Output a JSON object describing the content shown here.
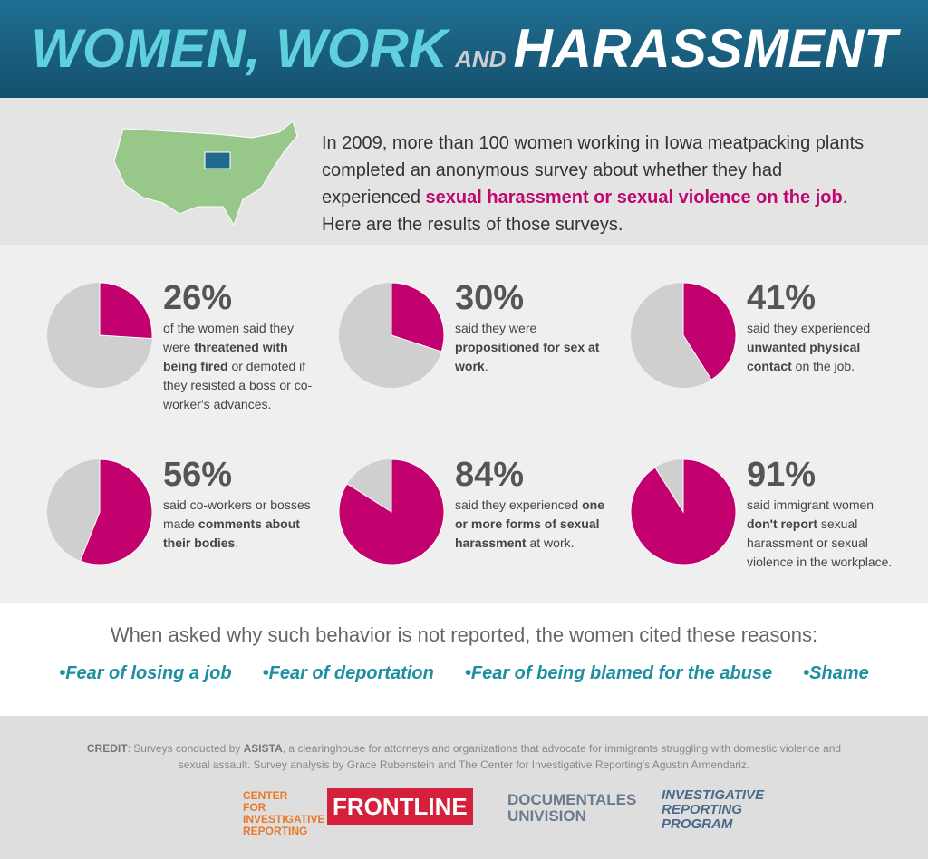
{
  "header": {
    "title_part1": "WOMEN, WORK",
    "title_part2": "AND",
    "title_part3": "HARASSMENT"
  },
  "intro": [
    "In 2009, more than 100 women working in Iowa meatpacking plants completed an anonymous survey about whether they had experienced ",
    {
      "text": "sexual harassment or sexual violence on the job",
      "strong": true
    },
    ". Here are the results of those surveys."
  ],
  "pies": [
    {
      "value": 26,
      "label": "26%",
      "text": [
        "of the women said they were ",
        {
          "text": "threatened with being fired",
          "strong": true
        },
        " or demoted if they resisted a boss or co-worker's advances."
      ]
    },
    {
      "value": 30,
      "label": "30%",
      "text": [
        "said they were ",
        {
          "text": "propositioned for sex at work",
          "strong": true
        },
        "."
      ]
    },
    {
      "value": 41,
      "label": "41%",
      "text": [
        "said they experienced ",
        {
          "text": "unwanted physical contact",
          "strong": true
        },
        " on the job."
      ]
    },
    {
      "value": 56,
      "label": "56%",
      "text": [
        "said co-workers or bosses made ",
        {
          "text": "comments about their bodies",
          "strong": true
        },
        "."
      ]
    },
    {
      "value": 84,
      "label": "84%",
      "text": [
        "said they experienced ",
        {
          "text": "one or more forms of sexual harassment",
          "strong": true
        },
        " at work."
      ]
    },
    {
      "value": 91,
      "label": "91%",
      "text": [
        "said immigrant women ",
        {
          "text": "don't report",
          "strong": true
        },
        " sexual harassment or sexual violence in the workplace."
      ]
    }
  ],
  "reasons_intro": "When asked why such behavior is not reported, the women cited these reasons:",
  "reasons": [
    "Fear of losing a job",
    "Fear of deportation",
    "Fear of being blamed for the abuse",
    "Shame"
  ],
  "credit": [
    {
      "text": "CREDIT",
      "strong": true
    },
    ": Surveys conducted by ",
    {
      "text": "ASISTA",
      "strong": true
    },
    ", a clearinghouse for attorneys and organizations that advocate for immigrants struggling with domestic violence and sexual assault. Survey analysis by Grace Rubenstein and The Center for Investigative Reporting's Agustin Armendariz."
  ],
  "logos": [
    "CENTER FOR INVESTIGATIVE REPORTING",
    "FRONTLINE",
    "DOCUMENTALES UNIVISION",
    "INVESTIGATIVE REPORTING PROGRAM"
  ]
}
